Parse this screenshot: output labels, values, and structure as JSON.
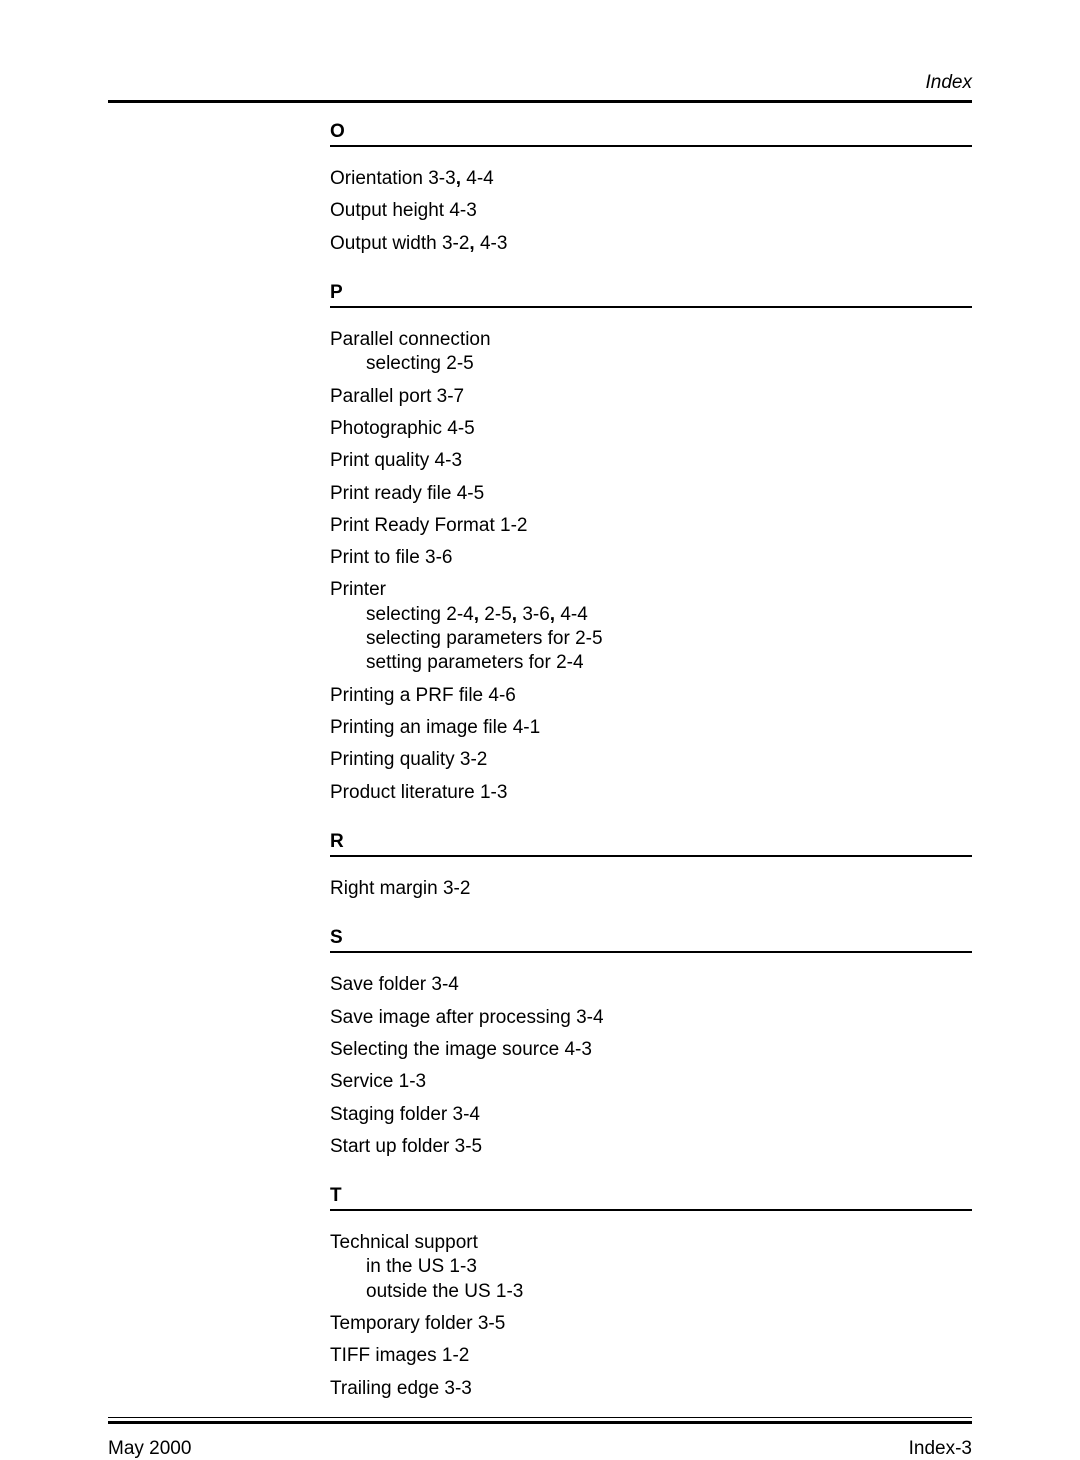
{
  "header": {
    "title": "Index"
  },
  "sections": [
    {
      "letter": "O",
      "entries": [
        {
          "text": "Orientation 3-3, 4-4",
          "boldCommas": [
            15
          ]
        },
        {
          "text": "Output height 4-3"
        },
        {
          "text": "Output width 3-2, 4-3",
          "boldCommas": [
            16
          ]
        }
      ]
    },
    {
      "letter": "P",
      "entries": [
        {
          "text": "Parallel connection",
          "subs": [
            "selecting 2-5"
          ]
        },
        {
          "text": "Parallel port 3-7"
        },
        {
          "text": "Photographic 4-5"
        },
        {
          "text": "Print quality 4-3"
        },
        {
          "text": "Print ready file 4-5"
        },
        {
          "text": "Print Ready Format 1-2"
        },
        {
          "text": "Print to file 3-6"
        },
        {
          "text": "Printer",
          "subs": [
            "selecting 2-4, 2-5, 3-6, 4-4",
            "selecting parameters for 2-5",
            "setting parameters for 2-4"
          ],
          "subBoldCommas": [
            [
              13,
              18,
              23
            ],
            [],
            []
          ]
        },
        {
          "text": "Printing a PRF file 4-6"
        },
        {
          "text": "Printing an image file 4-1"
        },
        {
          "text": "Printing quality 3-2"
        },
        {
          "text": "Product literature 1-3"
        }
      ]
    },
    {
      "letter": "R",
      "entries": [
        {
          "text": "Right margin 3-2"
        }
      ]
    },
    {
      "letter": "S",
      "entries": [
        {
          "text": "Save folder 3-4"
        },
        {
          "text": "Save image after processing 3-4"
        },
        {
          "text": "Selecting the image source 4-3"
        },
        {
          "text": "Service 1-3"
        },
        {
          "text": "Staging folder 3-4"
        },
        {
          "text": "Start up folder 3-5"
        }
      ]
    },
    {
      "letter": "T",
      "entries": [
        {
          "text": "Technical support",
          "subs": [
            "in the US 1-3",
            "outside the US 1-3"
          ]
        },
        {
          "text": "Temporary folder 3-5"
        },
        {
          "text": "TIFF images 1-2"
        },
        {
          "text": "Trailing edge 3-3"
        }
      ]
    }
  ],
  "footer": {
    "left": "May 2000",
    "right": "Index-3"
  }
}
